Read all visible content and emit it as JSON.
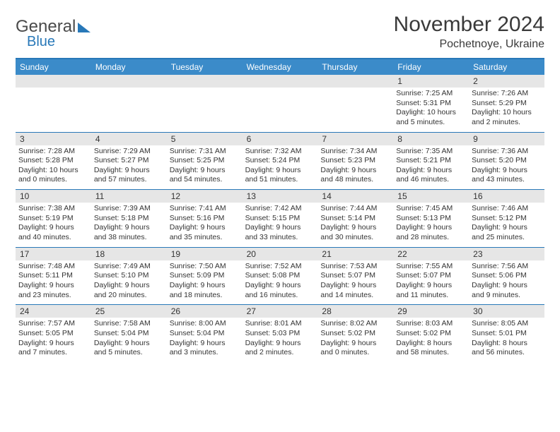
{
  "logo": {
    "text1": "General",
    "text2": "Blue"
  },
  "title": "November 2024",
  "location": "Pochetnoye, Ukraine",
  "weekdays": [
    "Sunday",
    "Monday",
    "Tuesday",
    "Wednesday",
    "Thursday",
    "Friday",
    "Saturday"
  ],
  "colors": {
    "header_bg": "#3b8bc9",
    "border": "#2878b8",
    "daynum_bg": "#e6e6e6"
  },
  "weeks": [
    {
      "nums": [
        "",
        "",
        "",
        "",
        "",
        "1",
        "2"
      ],
      "cells": [
        {
          "sunrise": "",
          "sunset": "",
          "daylight": ""
        },
        {
          "sunrise": "",
          "sunset": "",
          "daylight": ""
        },
        {
          "sunrise": "",
          "sunset": "",
          "daylight": ""
        },
        {
          "sunrise": "",
          "sunset": "",
          "daylight": ""
        },
        {
          "sunrise": "",
          "sunset": "",
          "daylight": ""
        },
        {
          "sunrise": "Sunrise: 7:25 AM",
          "sunset": "Sunset: 5:31 PM",
          "daylight": "Daylight: 10 hours and 5 minutes."
        },
        {
          "sunrise": "Sunrise: 7:26 AM",
          "sunset": "Sunset: 5:29 PM",
          "daylight": "Daylight: 10 hours and 2 minutes."
        }
      ]
    },
    {
      "nums": [
        "3",
        "4",
        "5",
        "6",
        "7",
        "8",
        "9"
      ],
      "cells": [
        {
          "sunrise": "Sunrise: 7:28 AM",
          "sunset": "Sunset: 5:28 PM",
          "daylight": "Daylight: 10 hours and 0 minutes."
        },
        {
          "sunrise": "Sunrise: 7:29 AM",
          "sunset": "Sunset: 5:27 PM",
          "daylight": "Daylight: 9 hours and 57 minutes."
        },
        {
          "sunrise": "Sunrise: 7:31 AM",
          "sunset": "Sunset: 5:25 PM",
          "daylight": "Daylight: 9 hours and 54 minutes."
        },
        {
          "sunrise": "Sunrise: 7:32 AM",
          "sunset": "Sunset: 5:24 PM",
          "daylight": "Daylight: 9 hours and 51 minutes."
        },
        {
          "sunrise": "Sunrise: 7:34 AM",
          "sunset": "Sunset: 5:23 PM",
          "daylight": "Daylight: 9 hours and 48 minutes."
        },
        {
          "sunrise": "Sunrise: 7:35 AM",
          "sunset": "Sunset: 5:21 PM",
          "daylight": "Daylight: 9 hours and 46 minutes."
        },
        {
          "sunrise": "Sunrise: 7:36 AM",
          "sunset": "Sunset: 5:20 PM",
          "daylight": "Daylight: 9 hours and 43 minutes."
        }
      ]
    },
    {
      "nums": [
        "10",
        "11",
        "12",
        "13",
        "14",
        "15",
        "16"
      ],
      "cells": [
        {
          "sunrise": "Sunrise: 7:38 AM",
          "sunset": "Sunset: 5:19 PM",
          "daylight": "Daylight: 9 hours and 40 minutes."
        },
        {
          "sunrise": "Sunrise: 7:39 AM",
          "sunset": "Sunset: 5:18 PM",
          "daylight": "Daylight: 9 hours and 38 minutes."
        },
        {
          "sunrise": "Sunrise: 7:41 AM",
          "sunset": "Sunset: 5:16 PM",
          "daylight": "Daylight: 9 hours and 35 minutes."
        },
        {
          "sunrise": "Sunrise: 7:42 AM",
          "sunset": "Sunset: 5:15 PM",
          "daylight": "Daylight: 9 hours and 33 minutes."
        },
        {
          "sunrise": "Sunrise: 7:44 AM",
          "sunset": "Sunset: 5:14 PM",
          "daylight": "Daylight: 9 hours and 30 minutes."
        },
        {
          "sunrise": "Sunrise: 7:45 AM",
          "sunset": "Sunset: 5:13 PM",
          "daylight": "Daylight: 9 hours and 28 minutes."
        },
        {
          "sunrise": "Sunrise: 7:46 AM",
          "sunset": "Sunset: 5:12 PM",
          "daylight": "Daylight: 9 hours and 25 minutes."
        }
      ]
    },
    {
      "nums": [
        "17",
        "18",
        "19",
        "20",
        "21",
        "22",
        "23"
      ],
      "cells": [
        {
          "sunrise": "Sunrise: 7:48 AM",
          "sunset": "Sunset: 5:11 PM",
          "daylight": "Daylight: 9 hours and 23 minutes."
        },
        {
          "sunrise": "Sunrise: 7:49 AM",
          "sunset": "Sunset: 5:10 PM",
          "daylight": "Daylight: 9 hours and 20 minutes."
        },
        {
          "sunrise": "Sunrise: 7:50 AM",
          "sunset": "Sunset: 5:09 PM",
          "daylight": "Daylight: 9 hours and 18 minutes."
        },
        {
          "sunrise": "Sunrise: 7:52 AM",
          "sunset": "Sunset: 5:08 PM",
          "daylight": "Daylight: 9 hours and 16 minutes."
        },
        {
          "sunrise": "Sunrise: 7:53 AM",
          "sunset": "Sunset: 5:07 PM",
          "daylight": "Daylight: 9 hours and 14 minutes."
        },
        {
          "sunrise": "Sunrise: 7:55 AM",
          "sunset": "Sunset: 5:07 PM",
          "daylight": "Daylight: 9 hours and 11 minutes."
        },
        {
          "sunrise": "Sunrise: 7:56 AM",
          "sunset": "Sunset: 5:06 PM",
          "daylight": "Daylight: 9 hours and 9 minutes."
        }
      ]
    },
    {
      "nums": [
        "24",
        "25",
        "26",
        "27",
        "28",
        "29",
        "30"
      ],
      "cells": [
        {
          "sunrise": "Sunrise: 7:57 AM",
          "sunset": "Sunset: 5:05 PM",
          "daylight": "Daylight: 9 hours and 7 minutes."
        },
        {
          "sunrise": "Sunrise: 7:58 AM",
          "sunset": "Sunset: 5:04 PM",
          "daylight": "Daylight: 9 hours and 5 minutes."
        },
        {
          "sunrise": "Sunrise: 8:00 AM",
          "sunset": "Sunset: 5:04 PM",
          "daylight": "Daylight: 9 hours and 3 minutes."
        },
        {
          "sunrise": "Sunrise: 8:01 AM",
          "sunset": "Sunset: 5:03 PM",
          "daylight": "Daylight: 9 hours and 2 minutes."
        },
        {
          "sunrise": "Sunrise: 8:02 AM",
          "sunset": "Sunset: 5:02 PM",
          "daylight": "Daylight: 9 hours and 0 minutes."
        },
        {
          "sunrise": "Sunrise: 8:03 AM",
          "sunset": "Sunset: 5:02 PM",
          "daylight": "Daylight: 8 hours and 58 minutes."
        },
        {
          "sunrise": "Sunrise: 8:05 AM",
          "sunset": "Sunset: 5:01 PM",
          "daylight": "Daylight: 8 hours and 56 minutes."
        }
      ]
    }
  ]
}
